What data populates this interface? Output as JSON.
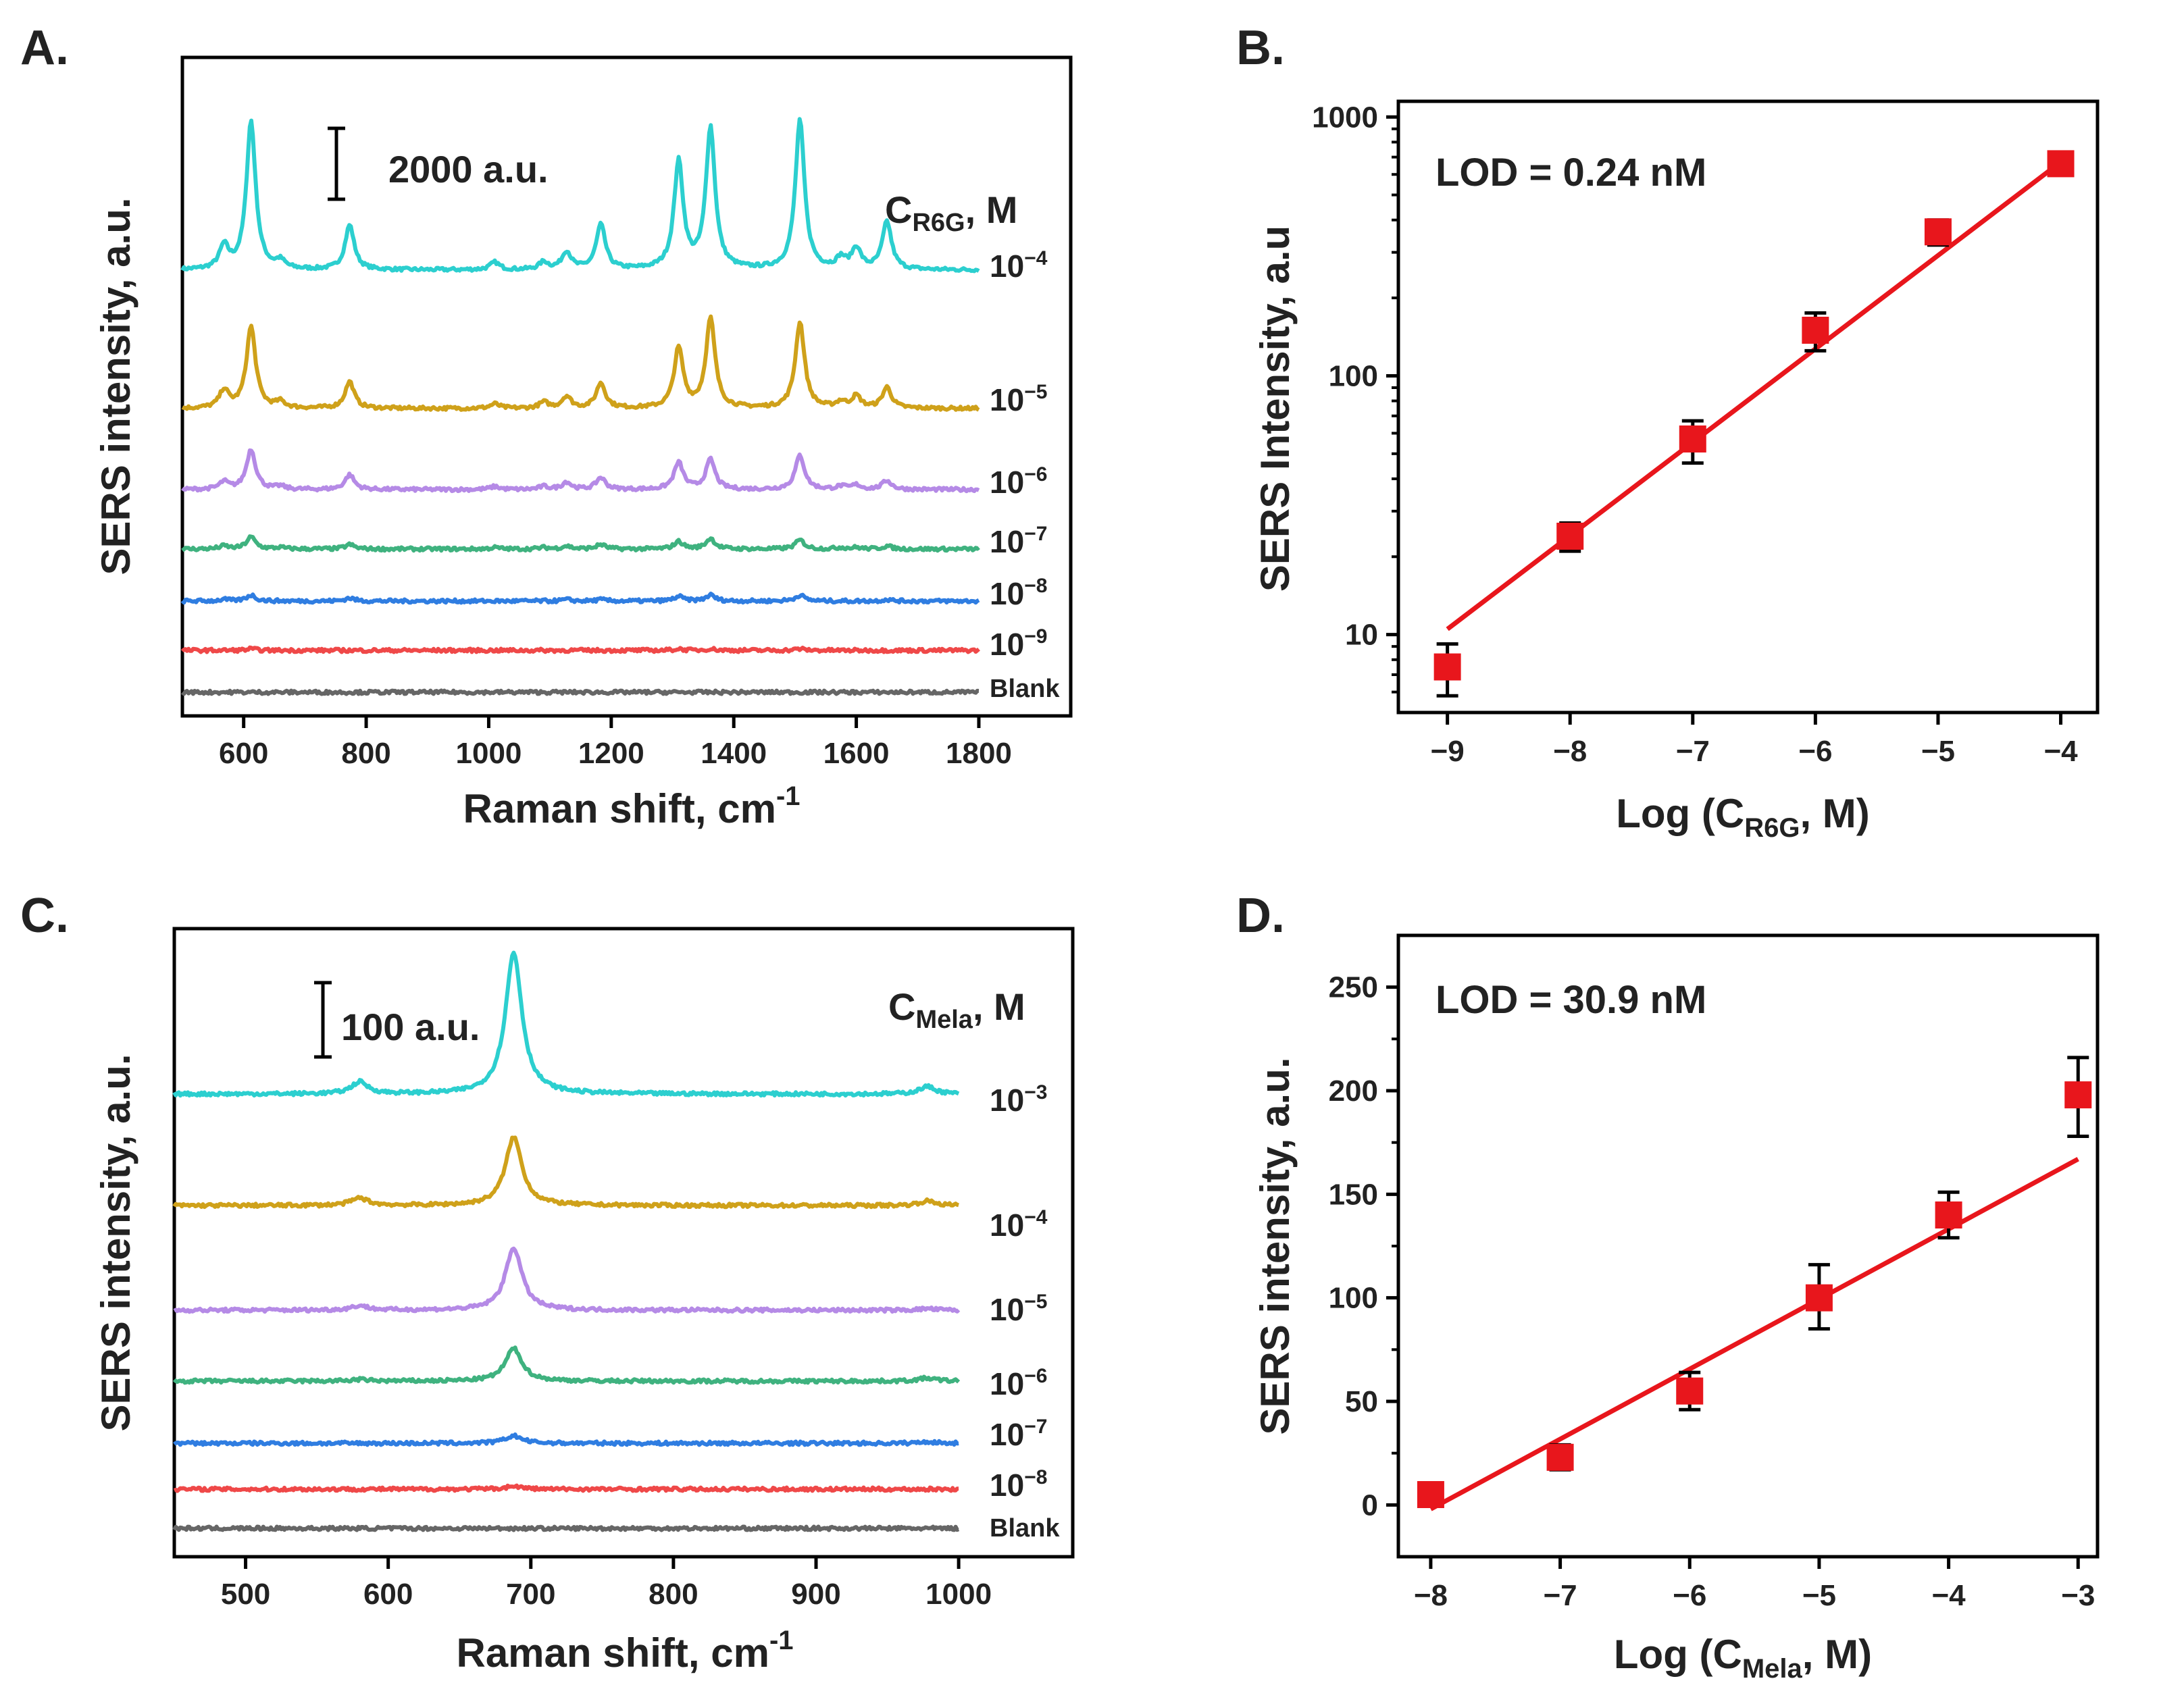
{
  "chart_data": [
    {
      "panel": "A.",
      "type": "line",
      "title": "",
      "xlabel": "Raman shift, cm",
      "xlabel_sup": "-1",
      "ylabel": "SERS intensity, a.u.",
      "xlim": [
        500,
        1950
      ],
      "xticks": [
        600,
        800,
        1000,
        1200,
        1400,
        1600,
        1800
      ],
      "scale_bar": "2000 a.u.",
      "legend_title_main": "C",
      "legend_title_sub": "R6G",
      "legend_title_unit": ", M",
      "peaks": [
        568,
        612,
        660,
        773,
        1010,
        1090,
        1127,
        1183,
        1310,
        1362,
        1508,
        1575,
        1600,
        1650
      ],
      "series": [
        {
          "name": "10",
          "exp": "-4",
          "color": "#2ccfcf",
          "rel_heights": [
            0.15,
            1.0,
            0.05,
            0.3,
            0.05,
            0.05,
            0.12,
            0.3,
            0.72,
            0.95,
            1.0,
            0.07,
            0.14,
            0.32
          ]
        },
        {
          "name": "10",
          "exp": "-5",
          "color": "#cfa11a",
          "rel_heights": [
            0.12,
            0.55,
            0.04,
            0.18,
            0.03,
            0.04,
            0.08,
            0.17,
            0.4,
            0.6,
            0.58,
            0.04,
            0.08,
            0.14
          ]
        },
        {
          "name": "10",
          "exp": "-6",
          "color": "#b58ae6",
          "rel_heights": [
            0.05,
            0.27,
            0.02,
            0.1,
            0.02,
            0.02,
            0.05,
            0.08,
            0.18,
            0.2,
            0.23,
            0.02,
            0.03,
            0.06
          ]
        },
        {
          "name": "10",
          "exp": "-7",
          "color": "#3fb27f",
          "rel_heights": [
            0.02,
            0.08,
            0.01,
            0.03,
            0.01,
            0.01,
            0.02,
            0.03,
            0.05,
            0.07,
            0.06,
            0.01,
            0.01,
            0.02
          ]
        },
        {
          "name": "10",
          "exp": "-8",
          "color": "#2f7de1",
          "rel_heights": [
            0.01,
            0.04,
            0.0,
            0.02,
            0.0,
            0.0,
            0.01,
            0.01,
            0.03,
            0.04,
            0.04,
            0.0,
            0.0,
            0.01
          ]
        },
        {
          "name": "10",
          "exp": "-9",
          "color": "#ef4848",
          "rel_heights": [
            0.0,
            0.01,
            0.0,
            0.0,
            0.0,
            0.0,
            0.0,
            0.0,
            0.01,
            0.01,
            0.01,
            0.0,
            0.0,
            0.0
          ]
        },
        {
          "name": "Blank",
          "exp": "",
          "color": "#666666",
          "rel_heights": [
            0,
            0,
            0,
            0,
            0,
            0,
            0,
            0,
            0,
            0,
            0,
            0,
            0,
            0
          ]
        }
      ]
    },
    {
      "panel": "B.",
      "type": "scatter",
      "title": "",
      "annotation": "LOD = 0.24 nM",
      "xlabel_pre": "Log (C",
      "xlabel_sub": "R6G",
      "xlabel_post": ", M)",
      "ylabel": "SERS Intensity, a.u",
      "yscale": "log",
      "xlim": [
        -9.4,
        -3.7
      ],
      "ylim": [
        5,
        1150
      ],
      "xticks": [
        -9,
        -8,
        -7,
        -6,
        -5,
        -4
      ],
      "xtick_labels": [
        "−9",
        "−8",
        "−7",
        "−6",
        "−5",
        "−4"
      ],
      "yticks": [
        10,
        100,
        1000
      ],
      "ytick_labels": [
        "10",
        "100",
        "1000"
      ],
      "x": [
        -9,
        -8,
        -7,
        -6,
        -5,
        -4
      ],
      "y": [
        7.5,
        24,
        57,
        150,
        360,
        660
      ],
      "err_low": [
        5.8,
        21,
        46,
        125,
        320,
        600
      ],
      "err_high": [
        9.2,
        27,
        67,
        175,
        400,
        720
      ],
      "fit": {
        "x": [
          -9,
          -4
        ],
        "y": [
          10.5,
          670
        ]
      },
      "marker_color": "#e8161c",
      "fit_color": "#e8161c"
    },
    {
      "panel": "C.",
      "type": "line",
      "title": "",
      "xlabel": "Raman shift, cm",
      "xlabel_sup": "-1",
      "ylabel": "SERS intensity, a.u.",
      "xlim": [
        450,
        1080
      ],
      "xticks": [
        500,
        600,
        700,
        800,
        900,
        1000
      ],
      "scale_bar": "100 a.u.",
      "legend_title_main": "C",
      "legend_title_sub": "Mela",
      "legend_title_unit": ", M",
      "peaks": [
        580,
        688,
        978
      ],
      "series": [
        {
          "name": "10",
          "exp": "-3",
          "color": "#2ccfcf",
          "rel_heights": [
            0.08,
            0.95,
            0.05
          ]
        },
        {
          "name": "10",
          "exp": "-4",
          "color": "#cfa11a",
          "rel_heights": [
            0.05,
            0.46,
            0.03
          ]
        },
        {
          "name": "10",
          "exp": "-5",
          "color": "#b58ae6",
          "rel_heights": [
            0.03,
            0.42,
            0.01
          ]
        },
        {
          "name": "10",
          "exp": "-6",
          "color": "#3fb27f",
          "rel_heights": [
            0.01,
            0.22,
            0.02
          ]
        },
        {
          "name": "10",
          "exp": "-7",
          "color": "#2f7de1",
          "rel_heights": [
            0.0,
            0.05,
            0.01
          ]
        },
        {
          "name": "10",
          "exp": "-8",
          "color": "#ef4848",
          "rel_heights": [
            0.0,
            0.02,
            0.0
          ]
        },
        {
          "name": "Blank",
          "exp": "",
          "color": "#666666",
          "rel_heights": [
            0,
            0,
            0
          ]
        }
      ]
    },
    {
      "panel": "D.",
      "type": "scatter",
      "title": "",
      "annotation": "LOD = 30.9 nM",
      "xlabel_pre": "Log (C",
      "xlabel_sub": "Mela",
      "xlabel_post": ", M)",
      "ylabel": "SERS intensity, a.u.",
      "yscale": "linear",
      "xlim": [
        -8.25,
        -2.85
      ],
      "ylim": [
        -25,
        275
      ],
      "xticks": [
        -8,
        -7,
        -6,
        -5,
        -4,
        -3
      ],
      "xtick_labels": [
        "−8",
        "−7",
        "−6",
        "−5",
        "−4",
        "−3"
      ],
      "yticks": [
        0,
        50,
        100,
        150,
        200,
        250
      ],
      "ytick_labels": [
        "0",
        "50",
        "100",
        "150",
        "200",
        "250"
      ],
      "x": [
        -8,
        -7,
        -6,
        -5,
        -4,
        -3
      ],
      "y": [
        5,
        23,
        55,
        100,
        140,
        198
      ],
      "err_low": [
        0,
        17,
        46,
        85,
        129,
        178
      ],
      "err_high": [
        10,
        29,
        64,
        116,
        151,
        216
      ],
      "fit": {
        "x": [
          -8,
          -3
        ],
        "y": [
          -2,
          167
        ]
      },
      "marker_color": "#e8161c",
      "fit_color": "#e8161c"
    }
  ]
}
